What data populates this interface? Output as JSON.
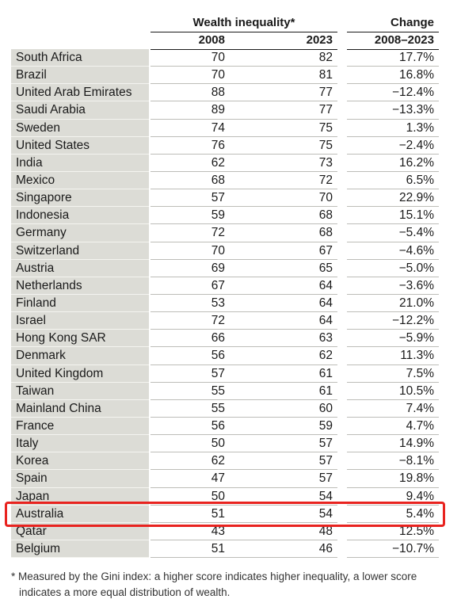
{
  "chart_data": {
    "type": "table",
    "header_group": "Wealth inequality*",
    "header_change": "Change",
    "col_year1": "2008",
    "col_year2": "2023",
    "col_change": "2008–2023",
    "rows": [
      {
        "country": "South Africa",
        "y2008": "70",
        "y2023": "82",
        "change": "17.7%"
      },
      {
        "country": "Brazil",
        "y2008": "70",
        "y2023": "81",
        "change": "16.8%"
      },
      {
        "country": "United Arab Emirates",
        "y2008": "88",
        "y2023": "77",
        "change": "−12.4%"
      },
      {
        "country": "Saudi Arabia",
        "y2008": "89",
        "y2023": "77",
        "change": "−13.3%"
      },
      {
        "country": "Sweden",
        "y2008": "74",
        "y2023": "75",
        "change": "1.3%"
      },
      {
        "country": "United States",
        "y2008": "76",
        "y2023": "75",
        "change": "−2.4%"
      },
      {
        "country": "India",
        "y2008": "62",
        "y2023": "73",
        "change": "16.2%"
      },
      {
        "country": "Mexico",
        "y2008": "68",
        "y2023": "72",
        "change": "6.5%"
      },
      {
        "country": "Singapore",
        "y2008": "57",
        "y2023": "70",
        "change": "22.9%"
      },
      {
        "country": "Indonesia",
        "y2008": "59",
        "y2023": "68",
        "change": "15.1%"
      },
      {
        "country": "Germany",
        "y2008": "72",
        "y2023": "68",
        "change": "−5.4%"
      },
      {
        "country": "Switzerland",
        "y2008": "70",
        "y2023": "67",
        "change": "−4.6%"
      },
      {
        "country": "Austria",
        "y2008": "69",
        "y2023": "65",
        "change": "−5.0%"
      },
      {
        "country": "Netherlands",
        "y2008": "67",
        "y2023": "64",
        "change": "−3.6%"
      },
      {
        "country": "Finland",
        "y2008": "53",
        "y2023": "64",
        "change": "21.0%"
      },
      {
        "country": "Israel",
        "y2008": "72",
        "y2023": "64",
        "change": "−12.2%"
      },
      {
        "country": "Hong Kong SAR",
        "y2008": "66",
        "y2023": "63",
        "change": "−5.9%"
      },
      {
        "country": "Denmark",
        "y2008": "56",
        "y2023": "62",
        "change": "11.3%"
      },
      {
        "country": "United Kingdom",
        "y2008": "57",
        "y2023": "61",
        "change": "7.5%"
      },
      {
        "country": "Taiwan",
        "y2008": "55",
        "y2023": "61",
        "change": "10.5%"
      },
      {
        "country": "Mainland China",
        "y2008": "55",
        "y2023": "60",
        "change": "7.4%"
      },
      {
        "country": "France",
        "y2008": "56",
        "y2023": "59",
        "change": "4.7%"
      },
      {
        "country": "Italy",
        "y2008": "50",
        "y2023": "57",
        "change": "14.9%"
      },
      {
        "country": "Korea",
        "y2008": "62",
        "y2023": "57",
        "change": "−8.1%"
      },
      {
        "country": "Spain",
        "y2008": "47",
        "y2023": "57",
        "change": "19.8%"
      },
      {
        "country": "Japan",
        "y2008": "50",
        "y2023": "54",
        "change": "9.4%"
      },
      {
        "country": "Australia",
        "y2008": "51",
        "y2023": "54",
        "change": "5.4%",
        "highlighted": true
      },
      {
        "country": "Qatar",
        "y2008": "43",
        "y2023": "48",
        "change": "12.5%"
      },
      {
        "country": "Belgium",
        "y2008": "51",
        "y2023": "46",
        "change": "−10.7%"
      }
    ],
    "footnote_line1": "* Measured by the Gini index: a higher score indicates higher inequality, a lower score",
    "footnote_line2": "indicates a more equal distribution of wealth.",
    "highlight_color": "#e8231f",
    "name_column_color": "#dcdcd6"
  }
}
